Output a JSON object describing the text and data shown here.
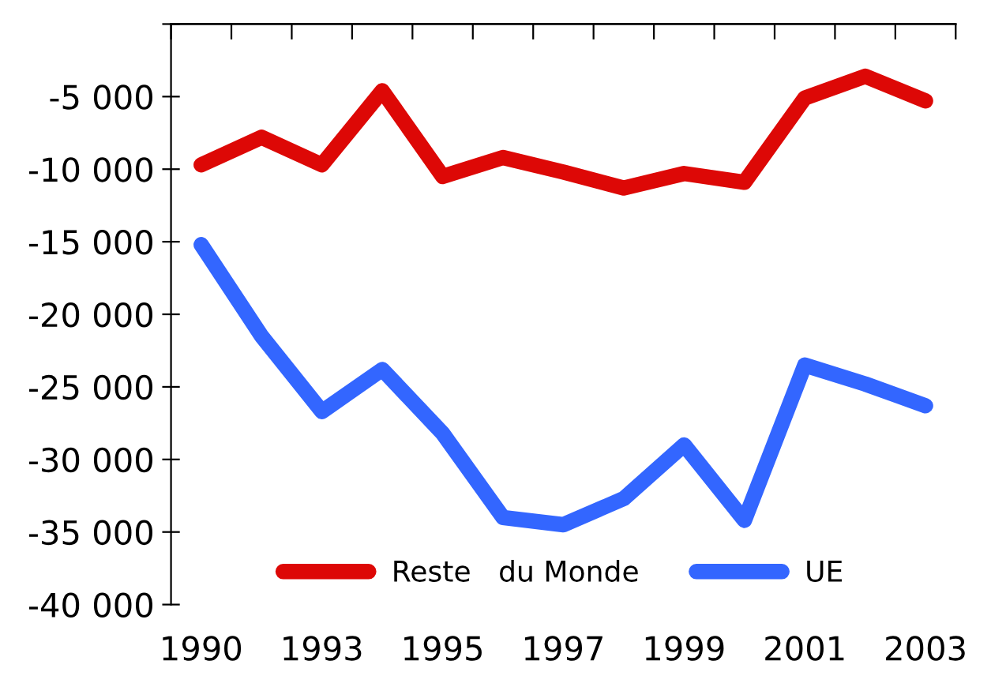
{
  "chart_data": {
    "type": "line",
    "categories": [
      "1990",
      null,
      "1993",
      null,
      "1995",
      null,
      "1997",
      null,
      "1999",
      null,
      "2001",
      null,
      "2003"
    ],
    "series": [
      {
        "name": "Reste   du Monde",
        "color": "#dd0806",
        "values": [
          -9700,
          -7800,
          -9700,
          -4600,
          -10500,
          -9200,
          -10200,
          -11300,
          -10300,
          -10900,
          -5100,
          -3600,
          -5300
        ]
      },
      {
        "name": "UE",
        "color": "#3366ff",
        "values": [
          -15200,
          -21500,
          -26700,
          -23800,
          -28200,
          -34000,
          -34500,
          -32700,
          -29000,
          -34200,
          -23500,
          -24800,
          -26300
        ]
      }
    ],
    "ylim": [
      -40000,
      0
    ],
    "yticks": [
      {
        "value": -40000,
        "label": "-40 000"
      },
      {
        "value": -35000,
        "label": "-35 000"
      },
      {
        "value": -30000,
        "label": "-30 000"
      },
      {
        "value": -25000,
        "label": "-25 000"
      },
      {
        "value": -20000,
        "label": "-20 000"
      },
      {
        "value": -15000,
        "label": "-15 000"
      },
      {
        "value": -10000,
        "label": "-10 000"
      },
      {
        "value": -5000,
        "label": "-5 000"
      },
      {
        "value": 0,
        "label": null
      }
    ],
    "legend": "lower center",
    "grid": false,
    "marker": "none",
    "line_style": "solid"
  }
}
